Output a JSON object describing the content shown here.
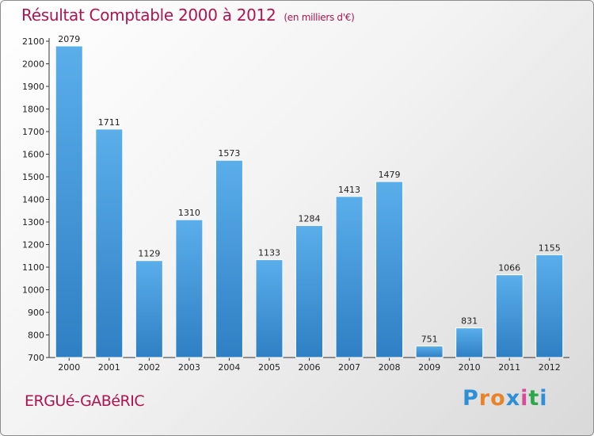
{
  "header": {
    "title": "Résultat Comptable 2000 à 2012",
    "subtitle": "(en milliers d'€)"
  },
  "footer": {
    "commune": "ERGUé-GABéRIC",
    "logo_letters": [
      "P",
      "r",
      "o",
      "x",
      "i",
      "t",
      "i"
    ],
    "logo_colors": [
      "#2e8fd6",
      "#e8832a",
      "#e8832a",
      "#2e8fd6",
      "#d84b9b",
      "#2aa84a",
      "#2e8fd6"
    ]
  },
  "chart_data": {
    "type": "bar",
    "title": "Résultat Comptable 2000 à 2012",
    "subtitle": "(en milliers d'€)",
    "categories": [
      "2000",
      "2001",
      "2002",
      "2003",
      "2004",
      "2005",
      "2006",
      "2007",
      "2008",
      "2009",
      "2010",
      "2011",
      "2012"
    ],
    "values": [
      2079,
      1711,
      1129,
      1310,
      1573,
      1133,
      1284,
      1413,
      1479,
      751,
      831,
      1066,
      1155
    ],
    "ylim": [
      700,
      2100
    ],
    "yticks": [
      700,
      800,
      900,
      1000,
      1100,
      1200,
      1300,
      1400,
      1500,
      1600,
      1700,
      1800,
      1900,
      2000,
      2100
    ],
    "grid": false,
    "legend": "none",
    "bar_color": "#3d96d8"
  }
}
